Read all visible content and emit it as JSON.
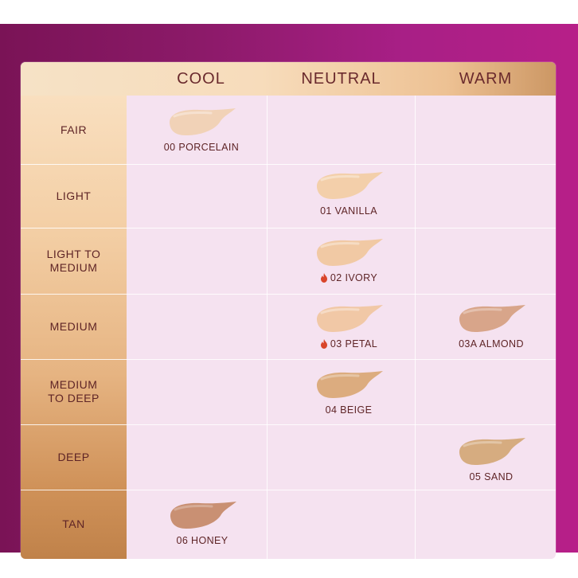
{
  "columns": [
    "COOL",
    "NEUTRAL",
    "WARM"
  ],
  "rows": [
    "FAIR",
    "LIGHT",
    "LIGHT TO\nMEDIUM",
    "MEDIUM",
    "MEDIUM\nTO DEEP",
    "DEEP",
    "TAN"
  ],
  "shades": [
    {
      "name": "00 PORCELAIN",
      "color": "#f1d2b7",
      "hot": false
    },
    {
      "name": "01 VANILLA",
      "color": "#f3cfaa",
      "hot": false
    },
    {
      "name": "02 IVORY",
      "color": "#f1c9a4",
      "hot": true
    },
    {
      "name": "03 PETAL",
      "color": "#f1c8a6",
      "hot": true
    },
    {
      "name": "03A ALMOND",
      "color": "#d8a58a",
      "hot": false
    },
    {
      "name": "04 BEIGE",
      "color": "#dcac7f",
      "hot": false
    },
    {
      "name": "05 SAND",
      "color": "#d6ac80",
      "hot": false
    },
    {
      "name": "06 HONEY",
      "color": "#c99073",
      "hot": false
    }
  ],
  "colors": {
    "text": "#5e2426",
    "flame": "#d9452a"
  }
}
